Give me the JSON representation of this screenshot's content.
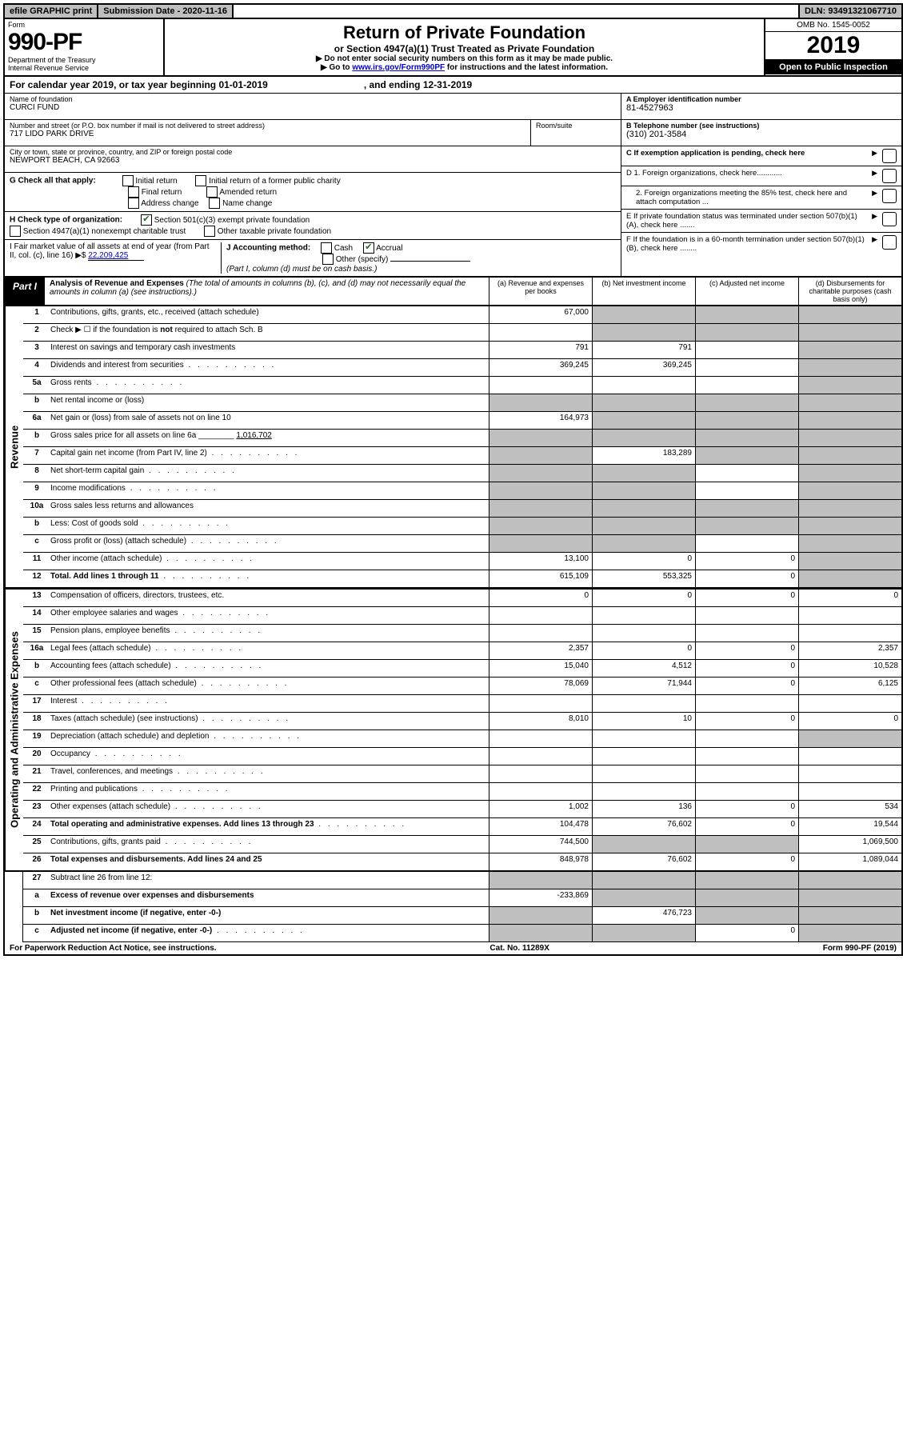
{
  "topbar": {
    "efile": "efile GRAPHIC print",
    "subdate_label": "Submission Date - 2020-11-16",
    "dln": "DLN: 93491321067710"
  },
  "header": {
    "form_label": "Form",
    "form_no": "990-PF",
    "dept": "Department of the Treasury",
    "irs": "Internal Revenue Service",
    "title": "Return of Private Foundation",
    "subtitle": "or Section 4947(a)(1) Trust Treated as Private Foundation",
    "instr1": "▶ Do not enter social security numbers on this form as it may be made public.",
    "instr2_pre": "▶ Go to ",
    "instr2_link": "www.irs.gov/Form990PF",
    "instr2_post": " for instructions and the latest information.",
    "omb": "OMB No. 1545-0052",
    "year": "2019",
    "open": "Open to Public Inspection"
  },
  "calyear": {
    "text1": "For calendar year 2019, or tax year beginning 01-01-2019",
    "text2": ", and ending 12-31-2019"
  },
  "info": {
    "name_label": "Name of foundation",
    "name_val": "CURCI FUND",
    "addr_label": "Number and street (or P.O. box number if mail is not delivered to street address)",
    "addr_suite": "Room/suite",
    "addr_val": "717 LIDO PARK DRIVE",
    "city_label": "City or town, state or province, country, and ZIP or foreign postal code",
    "city_val": "NEWPORT BEACH, CA  92663",
    "a_label": "A Employer identification number",
    "a_val": "81-4527963",
    "b_label": "B Telephone number (see instructions)",
    "b_val": "(310) 201-3584",
    "c_label": "C If exemption application is pending, check here",
    "d1": "D 1. Foreign organizations, check here............",
    "d2": "2. Foreign organizations meeting the 85% test, check here and attach computation ...",
    "e": "E  If private foundation status was terminated under section 507(b)(1)(A), check here .......",
    "f": "F  If the foundation is in a 60-month termination under section 507(b)(1)(B), check here ........"
  },
  "g": {
    "label": "G Check all that apply:",
    "opts": [
      "Initial return",
      "Initial return of a former public charity",
      "Final return",
      "Amended return",
      "Address change",
      "Name change"
    ]
  },
  "h": {
    "label": "H Check type of organization:",
    "opt1": "Section 501(c)(3) exempt private foundation",
    "opt2": "Section 4947(a)(1) nonexempt charitable trust",
    "opt3": "Other taxable private foundation"
  },
  "i": {
    "label": "I Fair market value of all assets at end of year (from Part II, col. (c), line 16) ▶$",
    "val": "22,209,425"
  },
  "j": {
    "label": "J Accounting method:",
    "cash": "Cash",
    "accrual": "Accrual",
    "other": "Other (specify)",
    "note": "(Part I, column (d) must be on cash basis.)"
  },
  "part1": {
    "label": "Part I",
    "title": "Analysis of Revenue and Expenses",
    "desc": "(The total of amounts in columns (b), (c), and (d) may not necessarily equal the amounts in column (a) (see instructions).)",
    "cols": {
      "a": "(a)    Revenue and expenses per books",
      "b": "(b)   Net investment income",
      "c": "(c)   Adjusted net income",
      "d": "(d)   Disbursements for charitable purposes (cash basis only)"
    }
  },
  "revenue_label": "Revenue",
  "expense_label": "Operating and Administrative Expenses",
  "rows_rev": [
    {
      "n": "1",
      "l": "Contributions, gifts, grants, etc., received (attach schedule)",
      "a": "67,000",
      "b": "",
      "c": "",
      "d": "",
      "gb": true,
      "gc": true,
      "gd": true
    },
    {
      "n": "2",
      "l": "Check ▶ ☐ if the foundation is not required to attach Sch. B",
      "a": "",
      "b": "",
      "c": "",
      "d": "",
      "gb": true,
      "gc": true,
      "gd": true,
      "bold_not": true
    },
    {
      "n": "3",
      "l": "Interest on savings and temporary cash investments",
      "a": "791",
      "b": "791",
      "c": "",
      "d": "",
      "gd": true
    },
    {
      "n": "4",
      "l": "Dividends and interest from securities",
      "a": "369,245",
      "b": "369,245",
      "c": "",
      "d": "",
      "gd": true,
      "dot": true
    },
    {
      "n": "5a",
      "l": "Gross rents",
      "a": "",
      "b": "",
      "c": "",
      "d": "",
      "gd": true,
      "dot": true
    },
    {
      "n": "b",
      "l": "Net rental income or (loss)",
      "a": "",
      "b": "",
      "c": "",
      "d": "",
      "ga": true,
      "gb": true,
      "gc": true,
      "gd": true,
      "inline": true
    },
    {
      "n": "6a",
      "l": "Net gain or (loss) from sale of assets not on line 10",
      "a": "164,973",
      "b": "",
      "c": "",
      "d": "",
      "gb": true,
      "gc": true,
      "gd": true
    },
    {
      "n": "b",
      "l": "Gross sales price for all assets on line 6a ________",
      "a": "",
      "b": "",
      "c": "",
      "d": "",
      "ga": true,
      "gb": true,
      "gc": true,
      "gd": true,
      "inline_val": "1,016,702"
    },
    {
      "n": "7",
      "l": "Capital gain net income (from Part IV, line 2)",
      "a": "",
      "b": "183,289",
      "c": "",
      "d": "",
      "ga": true,
      "gc": true,
      "gd": true,
      "dot": true
    },
    {
      "n": "8",
      "l": "Net short-term capital gain",
      "a": "",
      "b": "",
      "c": "",
      "d": "",
      "ga": true,
      "gb": true,
      "gd": true,
      "dot": true
    },
    {
      "n": "9",
      "l": "Income modifications",
      "a": "",
      "b": "",
      "c": "",
      "d": "",
      "ga": true,
      "gb": true,
      "gd": true,
      "dot": true
    },
    {
      "n": "10a",
      "l": "Gross sales less returns and allowances",
      "a": "",
      "b": "",
      "c": "",
      "d": "",
      "ga": true,
      "gb": true,
      "gc": true,
      "gd": true,
      "inline": true
    },
    {
      "n": "b",
      "l": "Less: Cost of goods sold",
      "a": "",
      "b": "",
      "c": "",
      "d": "",
      "ga": true,
      "gb": true,
      "gc": true,
      "gd": true,
      "inline": true,
      "dot": true
    },
    {
      "n": "c",
      "l": "Gross profit or (loss) (attach schedule)",
      "a": "",
      "b": "",
      "c": "",
      "d": "",
      "ga": true,
      "gb": true,
      "gd": true,
      "dot": true
    },
    {
      "n": "11",
      "l": "Other income (attach schedule)",
      "a": "13,100",
      "b": "0",
      "c": "0",
      "d": "",
      "gd": true,
      "dot": true
    },
    {
      "n": "12",
      "l": "Total. Add lines 1 through 11",
      "a": "615,109",
      "b": "553,325",
      "c": "0",
      "d": "",
      "gd": true,
      "bold": true,
      "dot": true
    }
  ],
  "rows_exp": [
    {
      "n": "13",
      "l": "Compensation of officers, directors, trustees, etc.",
      "a": "0",
      "b": "0",
      "c": "0",
      "d": "0"
    },
    {
      "n": "14",
      "l": "Other employee salaries and wages",
      "a": "",
      "b": "",
      "c": "",
      "d": "",
      "dot": true
    },
    {
      "n": "15",
      "l": "Pension plans, employee benefits",
      "a": "",
      "b": "",
      "c": "",
      "d": "",
      "dot": true
    },
    {
      "n": "16a",
      "l": "Legal fees (attach schedule)",
      "a": "2,357",
      "b": "0",
      "c": "0",
      "d": "2,357",
      "dot": true
    },
    {
      "n": "b",
      "l": "Accounting fees (attach schedule)",
      "a": "15,040",
      "b": "4,512",
      "c": "0",
      "d": "10,528",
      "dot": true
    },
    {
      "n": "c",
      "l": "Other professional fees (attach schedule)",
      "a": "78,069",
      "b": "71,944",
      "c": "0",
      "d": "6,125",
      "dot": true
    },
    {
      "n": "17",
      "l": "Interest",
      "a": "",
      "b": "",
      "c": "",
      "d": "",
      "dot": true
    },
    {
      "n": "18",
      "l": "Taxes (attach schedule) (see instructions)",
      "a": "8,010",
      "b": "10",
      "c": "0",
      "d": "0",
      "dot": true
    },
    {
      "n": "19",
      "l": "Depreciation (attach schedule) and depletion",
      "a": "",
      "b": "",
      "c": "",
      "d": "",
      "gd": true,
      "dot": true
    },
    {
      "n": "20",
      "l": "Occupancy",
      "a": "",
      "b": "",
      "c": "",
      "d": "",
      "dot": true
    },
    {
      "n": "21",
      "l": "Travel, conferences, and meetings",
      "a": "",
      "b": "",
      "c": "",
      "d": "",
      "dot": true
    },
    {
      "n": "22",
      "l": "Printing and publications",
      "a": "",
      "b": "",
      "c": "",
      "d": "",
      "dot": true
    },
    {
      "n": "23",
      "l": "Other expenses (attach schedule)",
      "a": "1,002",
      "b": "136",
      "c": "0",
      "d": "534",
      "dot": true
    },
    {
      "n": "24",
      "l": "Total operating and administrative expenses. Add lines 13 through 23",
      "a": "104,478",
      "b": "76,602",
      "c": "0",
      "d": "19,544",
      "bold": true,
      "dot": true
    },
    {
      "n": "25",
      "l": "Contributions, gifts, grants paid",
      "a": "744,500",
      "b": "",
      "c": "",
      "d": "1,069,500",
      "gb": true,
      "gc": true,
      "dot": true
    },
    {
      "n": "26",
      "l": "Total expenses and disbursements. Add lines 24 and 25",
      "a": "848,978",
      "b": "76,602",
      "c": "0",
      "d": "1,089,044",
      "bold": true
    }
  ],
  "rows_bottom": [
    {
      "n": "27",
      "l": "Subtract line 26 from line 12:",
      "a": "",
      "b": "",
      "c": "",
      "d": "",
      "ga": true,
      "gb": true,
      "gc": true,
      "gd": true
    },
    {
      "n": "a",
      "l": "Excess of revenue over expenses and disbursements",
      "a": "-233,869",
      "b": "",
      "c": "",
      "d": "",
      "gb": true,
      "gc": true,
      "gd": true,
      "bold": true
    },
    {
      "n": "b",
      "l": "Net investment income (if negative, enter -0-)",
      "a": "",
      "b": "476,723",
      "c": "",
      "d": "",
      "ga": true,
      "gc": true,
      "gd": true,
      "bold": true
    },
    {
      "n": "c",
      "l": "Adjusted net income (if negative, enter -0-)",
      "a": "",
      "b": "",
      "c": "0",
      "d": "",
      "ga": true,
      "gb": true,
      "gd": true,
      "bold": true,
      "dot": true
    }
  ],
  "footer": {
    "left": "For Paperwork Reduction Act Notice, see instructions.",
    "mid": "Cat. No. 11289X",
    "right": "Form 990-PF (2019)"
  }
}
